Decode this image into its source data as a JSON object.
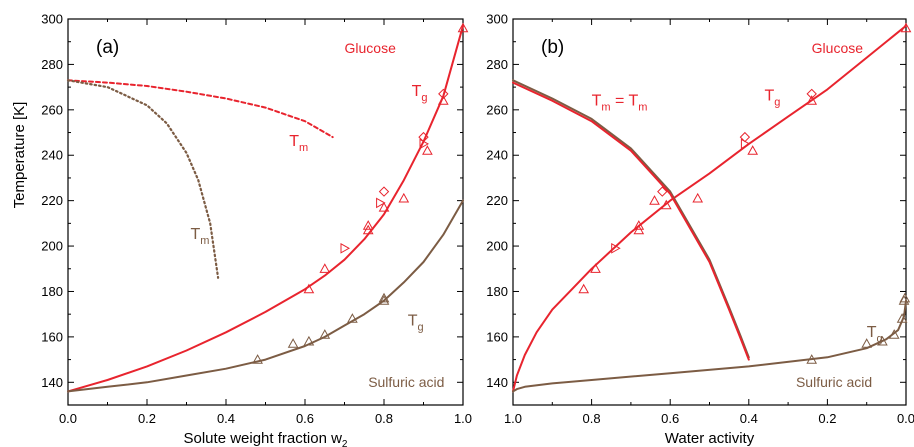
{
  "colors": {
    "glucose": "#e8242e",
    "sulfuric": "#7c5c44",
    "axis": "#000000"
  },
  "ylabel": "Temperature [K]",
  "chart_data": [
    {
      "type": "line",
      "panel": "(a)",
      "xlabel": "Solute weight fraction w",
      "xlabel_sub": "2",
      "xlim": [
        0.0,
        1.0
      ],
      "ylim": [
        130,
        300
      ],
      "x_ticks": [
        0.0,
        0.2,
        0.4,
        0.6,
        0.8,
        1.0
      ],
      "x_tick_labels": [
        "0.0",
        "0.2",
        "0.4",
        "0.6",
        "0.8",
        "1.0"
      ],
      "y_ticks": [
        140,
        160,
        180,
        200,
        220,
        240,
        260,
        280,
        300
      ],
      "y_tick_labels": [
        "140",
        "160",
        "180",
        "200",
        "220",
        "240",
        "260",
        "280",
        "300"
      ],
      "series": [
        {
          "id": "glucose-tg",
          "color": "glucose",
          "style": "solid",
          "x": [
            0.0,
            0.1,
            0.2,
            0.3,
            0.4,
            0.5,
            0.6,
            0.65,
            0.7,
            0.75,
            0.8,
            0.85,
            0.9,
            0.95,
            1.0
          ],
          "y": [
            136,
            141,
            147,
            154,
            162,
            171,
            181,
            187,
            194,
            203,
            214,
            229,
            246,
            266,
            297
          ]
        },
        {
          "id": "glucose-tm",
          "color": "glucose",
          "style": "dashed",
          "x": [
            0.0,
            0.1,
            0.2,
            0.3,
            0.4,
            0.5,
            0.6,
            0.67
          ],
          "y": [
            273,
            272,
            270.5,
            268,
            265,
            261,
            255,
            248
          ]
        },
        {
          "id": "sulfuric-tg",
          "color": "sulfuric",
          "style": "solid",
          "x": [
            0.0,
            0.1,
            0.2,
            0.3,
            0.4,
            0.5,
            0.6,
            0.65,
            0.7,
            0.75,
            0.8,
            0.85,
            0.9,
            0.95,
            1.0
          ],
          "y": [
            136,
            138,
            140,
            143,
            146,
            150,
            156,
            160,
            165,
            170,
            176,
            184,
            193,
            205,
            220
          ]
        },
        {
          "id": "sulfuric-tm",
          "color": "sulfuric",
          "style": "dotted",
          "x": [
            0.0,
            0.1,
            0.2,
            0.25,
            0.3,
            0.33,
            0.36,
            0.38
          ],
          "y": [
            273,
            270,
            262,
            254,
            241,
            229,
            210,
            186
          ]
        }
      ],
      "markers": [
        {
          "color": "glucose",
          "shape": "triangle",
          "x": 0.61,
          "y": 181
        },
        {
          "color": "glucose",
          "shape": "triangle",
          "x": 0.65,
          "y": 190
        },
        {
          "color": "glucose",
          "shape": "tri-right",
          "x": 0.7,
          "y": 199
        },
        {
          "color": "glucose",
          "shape": "triangle",
          "x": 0.76,
          "y": 207
        },
        {
          "color": "glucose",
          "shape": "triangle",
          "x": 0.76,
          "y": 209
        },
        {
          "color": "glucose",
          "shape": "tri-right",
          "x": 0.79,
          "y": 219
        },
        {
          "color": "glucose",
          "shape": "diamond",
          "x": 0.8,
          "y": 224
        },
        {
          "color": "glucose",
          "shape": "triangle",
          "x": 0.8,
          "y": 217
        },
        {
          "color": "glucose",
          "shape": "triangle",
          "x": 0.85,
          "y": 221
        },
        {
          "color": "glucose",
          "shape": "diamond",
          "x": 0.9,
          "y": 248
        },
        {
          "color": "glucose",
          "shape": "tri-right",
          "x": 0.9,
          "y": 245
        },
        {
          "color": "glucose",
          "shape": "triangle",
          "x": 0.91,
          "y": 242
        },
        {
          "color": "glucose",
          "shape": "diamond",
          "x": 0.95,
          "y": 267
        },
        {
          "color": "glucose",
          "shape": "triangle",
          "x": 0.95,
          "y": 264
        },
        {
          "color": "glucose",
          "shape": "triangle",
          "x": 1.0,
          "y": 296
        },
        {
          "color": "sulfuric",
          "shape": "triangle",
          "x": 0.48,
          "y": 150
        },
        {
          "color": "sulfuric",
          "shape": "triangle",
          "x": 0.57,
          "y": 157
        },
        {
          "color": "sulfuric",
          "shape": "triangle",
          "x": 0.61,
          "y": 158
        },
        {
          "color": "sulfuric",
          "shape": "triangle",
          "x": 0.65,
          "y": 161
        },
        {
          "color": "sulfuric",
          "shape": "triangle",
          "x": 0.72,
          "y": 168
        },
        {
          "color": "sulfuric",
          "shape": "triangle",
          "x": 0.8,
          "y": 176
        },
        {
          "color": "sulfuric",
          "shape": "triangle",
          "x": 0.8,
          "y": 177
        }
      ],
      "annotations": [
        {
          "id": "glucose-title",
          "text": "Glucose",
          "color": "glucose",
          "x": 0.7,
          "y": 285,
          "size": 14
        },
        {
          "id": "glucose-tg-label",
          "text": "T",
          "sub": "g",
          "color": "glucose",
          "x": 0.87,
          "y": 266,
          "size": 16
        },
        {
          "id": "glucose-tm-label",
          "text": "T",
          "sub": "m",
          "color": "glucose",
          "x": 0.56,
          "y": 244,
          "size": 16
        },
        {
          "id": "sulfuric-tm-label",
          "text": "T",
          "sub": "m",
          "color": "sulfuric",
          "x": 0.31,
          "y": 203,
          "size": 16
        },
        {
          "id": "sulfuric-tg-label",
          "text": "T",
          "sub": "g",
          "color": "sulfuric",
          "x": 0.86,
          "y": 165,
          "size": 16
        },
        {
          "id": "sulfuric-title",
          "text": "Sulfuric acid",
          "color": "sulfuric",
          "x": 0.76,
          "y": 138,
          "size": 14
        }
      ]
    },
    {
      "type": "line",
      "panel": "(b)",
      "xlabel": "Water activity",
      "xlabel_sub": "",
      "xlim": [
        1.0,
        0.0
      ],
      "ylim": [
        130,
        300
      ],
      "x_ticks": [
        1.0,
        0.8,
        0.6,
        0.4,
        0.2,
        0.0
      ],
      "x_tick_labels": [
        "1.0",
        "0.8",
        "0.6",
        "0.4",
        "0.2",
        "0.0"
      ],
      "y_ticks": [
        140,
        160,
        180,
        200,
        220,
        240,
        260,
        280,
        300
      ],
      "y_tick_labels": [
        "140",
        "160",
        "180",
        "200",
        "220",
        "240",
        "260",
        "280",
        "300"
      ],
      "series": [
        {
          "id": "glucose-tg",
          "color": "glucose",
          "style": "solid",
          "x": [
            1.0,
            0.99,
            0.97,
            0.94,
            0.9,
            0.85,
            0.8,
            0.7,
            0.6,
            0.5,
            0.4,
            0.3,
            0.2,
            0.1,
            0.0
          ],
          "y": [
            136,
            143,
            152,
            162,
            172,
            181,
            190,
            206,
            220,
            232,
            245,
            257,
            269,
            283,
            297
          ]
        },
        {
          "id": "tm-equals-tm",
          "color": "sulfuric",
          "style": "solid",
          "x": [
            1.0,
            0.9,
            0.8,
            0.7,
            0.6,
            0.5,
            0.45,
            0.42,
            0.4
          ],
          "y": [
            273,
            265,
            256,
            243,
            224,
            194,
            173,
            160,
            151
          ]
        },
        {
          "id": "tm-equals-tm-glucose",
          "color": "glucose",
          "style": "solid",
          "x": [
            1.0,
            0.9,
            0.8,
            0.7,
            0.6,
            0.5,
            0.45,
            0.42,
            0.4
          ],
          "y": [
            272,
            264,
            255,
            242,
            223,
            193,
            172,
            159,
            150
          ]
        },
        {
          "id": "sulfuric-tg",
          "color": "sulfuric",
          "style": "solid",
          "x": [
            1.0,
            0.99,
            0.97,
            0.9,
            0.8,
            0.6,
            0.4,
            0.2,
            0.1,
            0.05,
            0.02,
            0.005,
            0.0
          ],
          "y": [
            136,
            137,
            138,
            139.5,
            141,
            144,
            147,
            151,
            155,
            159,
            163,
            169,
            176
          ]
        }
      ],
      "markers": [
        {
          "color": "glucose",
          "shape": "triangle",
          "x": 0.82,
          "y": 181
        },
        {
          "color": "glucose",
          "shape": "triangle",
          "x": 0.79,
          "y": 190
        },
        {
          "color": "glucose",
          "shape": "tri-right",
          "x": 0.74,
          "y": 199
        },
        {
          "color": "glucose",
          "shape": "triangle",
          "x": 0.68,
          "y": 207
        },
        {
          "color": "glucose",
          "shape": "triangle",
          "x": 0.68,
          "y": 209
        },
        {
          "color": "glucose",
          "shape": "triangle",
          "x": 0.64,
          "y": 220
        },
        {
          "color": "glucose",
          "shape": "diamond",
          "x": 0.62,
          "y": 224
        },
        {
          "color": "glucose",
          "shape": "triangle",
          "x": 0.61,
          "y": 218
        },
        {
          "color": "glucose",
          "shape": "triangle",
          "x": 0.53,
          "y": 221
        },
        {
          "color": "glucose",
          "shape": "diamond",
          "x": 0.41,
          "y": 248
        },
        {
          "color": "glucose",
          "shape": "tri-right",
          "x": 0.41,
          "y": 245
        },
        {
          "color": "glucose",
          "shape": "triangle",
          "x": 0.39,
          "y": 242
        },
        {
          "color": "glucose",
          "shape": "diamond",
          "x": 0.24,
          "y": 267
        },
        {
          "color": "glucose",
          "shape": "triangle",
          "x": 0.24,
          "y": 264
        },
        {
          "color": "glucose",
          "shape": "triangle",
          "x": 0.0,
          "y": 296
        },
        {
          "color": "sulfuric",
          "shape": "triangle",
          "x": 0.24,
          "y": 150
        },
        {
          "color": "sulfuric",
          "shape": "triangle",
          "x": 0.1,
          "y": 157
        },
        {
          "color": "sulfuric",
          "shape": "triangle",
          "x": 0.06,
          "y": 158
        },
        {
          "color": "sulfuric",
          "shape": "triangle",
          "x": 0.03,
          "y": 161
        },
        {
          "color": "sulfuric",
          "shape": "triangle",
          "x": 0.01,
          "y": 168
        },
        {
          "color": "sulfuric",
          "shape": "triangle",
          "x": 0.005,
          "y": 176
        },
        {
          "color": "sulfuric",
          "shape": "triangle",
          "x": 0.003,
          "y": 177
        }
      ],
      "annotations": [
        {
          "id": "glucose-title",
          "text": "Glucose",
          "color": "glucose",
          "x": 0.24,
          "y": 285,
          "size": 14
        },
        {
          "id": "glucose-tg-label",
          "text": "T",
          "sub": "g",
          "color": "glucose",
          "x": 0.36,
          "y": 264,
          "size": 16
        },
        {
          "id": "tm-equals-tm-label",
          "text": "T",
          "sub": "m",
          "mid": " = T",
          "sub2": "m",
          "color": "glucose",
          "x": 0.8,
          "y": 262,
          "size": 16
        },
        {
          "id": "sulfuric-tg-label",
          "text": "T",
          "sub": "g",
          "color": "sulfuric",
          "x": 0.1,
          "y": 160,
          "size": 16
        },
        {
          "id": "sulfuric-title",
          "text": "Sulfuric acid",
          "color": "sulfuric",
          "x": 0.28,
          "y": 138,
          "size": 14
        }
      ]
    }
  ]
}
